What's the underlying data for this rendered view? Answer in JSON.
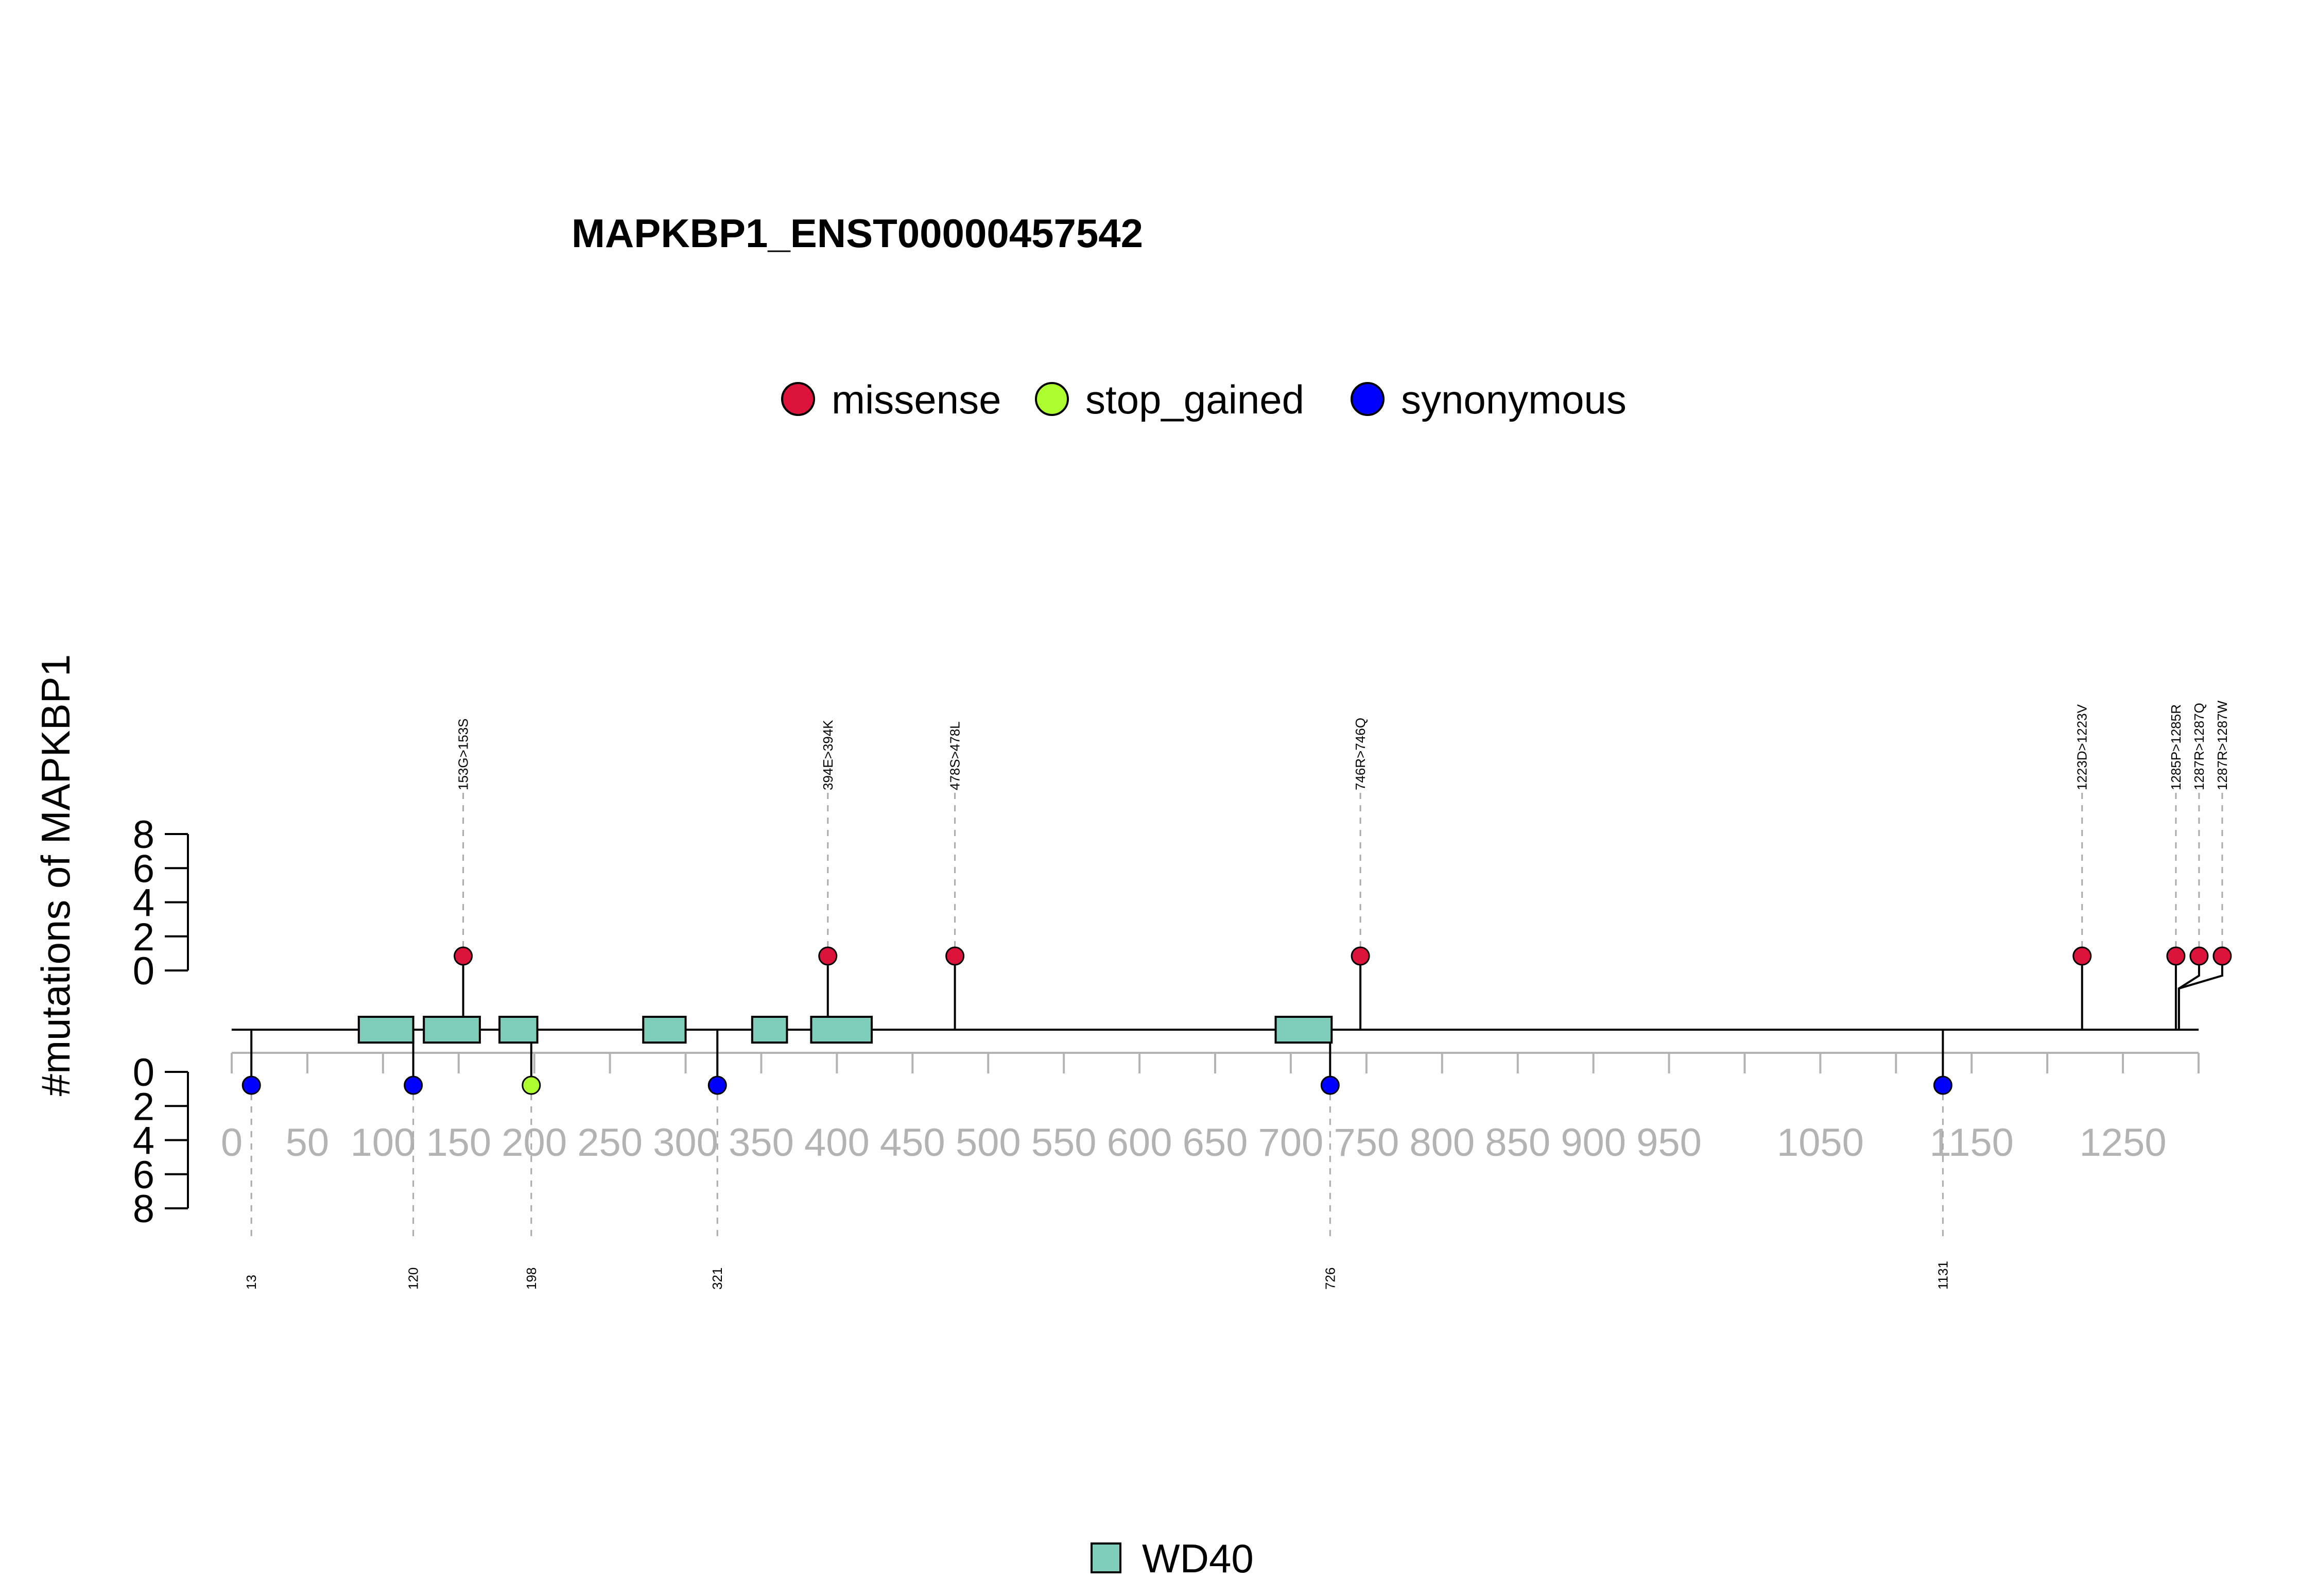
{
  "chart_data": {
    "type": "lollipop",
    "title": "MAPKBP1_ENST00000457542",
    "ylabel": "#mutations of MAPKBP1",
    "protein_length": 1300,
    "xlim": [
      0,
      1300
    ],
    "x_ticks": [
      0,
      50,
      100,
      150,
      200,
      250,
      300,
      350,
      400,
      450,
      500,
      550,
      600,
      650,
      700,
      750,
      800,
      850,
      900,
      950,
      1050,
      1150,
      1250
    ],
    "x_minor_ticks": [
      0,
      50,
      100,
      150,
      200,
      250,
      300,
      350,
      400,
      450,
      500,
      550,
      600,
      650,
      700,
      750,
      800,
      850,
      900,
      950,
      1000,
      1050,
      1100,
      1150,
      1200,
      1250,
      1300
    ],
    "y_ticks_upper": [
      0,
      2,
      4,
      6,
      8
    ],
    "y_ticks_lower": [
      0,
      2,
      4,
      6,
      8
    ],
    "ylim_upper": [
      0,
      8
    ],
    "ylim_lower": [
      0,
      8
    ],
    "mutation_types": [
      {
        "name": "missense",
        "color": "#DC143C"
      },
      {
        "name": "stop_gained",
        "color": "#ADFF2F"
      },
      {
        "name": "synonymous",
        "color": "#0000FF"
      }
    ],
    "domains": [
      {
        "name": "WD40",
        "color": "#7FCDBB",
        "segments": [
          [
            84,
            120
          ],
          [
            127,
            164
          ],
          [
            177,
            202
          ],
          [
            272,
            300
          ],
          [
            344,
            367
          ],
          [
            383,
            423
          ],
          [
            690,
            727
          ]
        ]
      }
    ],
    "mutations_above": [
      {
        "position": 153,
        "count": 1,
        "type": "missense",
        "label": "153G>153S"
      },
      {
        "position": 394,
        "count": 1,
        "type": "missense",
        "label": "394E>394K"
      },
      {
        "position": 478,
        "count": 1,
        "type": "missense",
        "label": "478S>478L"
      },
      {
        "position": 746,
        "count": 1,
        "type": "missense",
        "label": "746R>746Q"
      },
      {
        "position": 1223,
        "count": 1,
        "type": "missense",
        "label": "1223D>1223V"
      },
      {
        "position": 1285,
        "count": 1,
        "type": "missense",
        "label": "1285P>1285R"
      },
      {
        "position": 1287,
        "count": 1,
        "type": "missense",
        "label": "1287R>1287Q"
      },
      {
        "position": 1287,
        "count": 1,
        "type": "missense",
        "label": "1287R>1287W"
      }
    ],
    "mutations_below": [
      {
        "position": 13,
        "count": 1,
        "type": "synonymous",
        "label": "13"
      },
      {
        "position": 120,
        "count": 1,
        "type": "synonymous",
        "label": "120"
      },
      {
        "position": 198,
        "count": 1,
        "type": "stop_gained",
        "label": "198"
      },
      {
        "position": 321,
        "count": 1,
        "type": "synonymous",
        "label": "321"
      },
      {
        "position": 726,
        "count": 1,
        "type": "synonymous",
        "label": "726"
      },
      {
        "position": 1131,
        "count": 1,
        "type": "synonymous",
        "label": "1131"
      }
    ]
  }
}
